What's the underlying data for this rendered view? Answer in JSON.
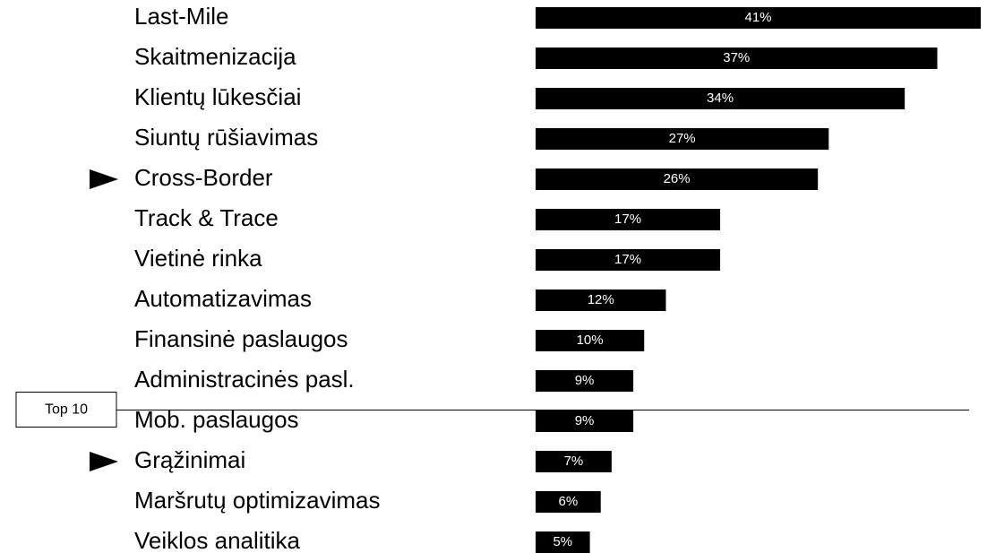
{
  "chart_data": {
    "type": "bar",
    "orientation": "horizontal",
    "categories": [
      "Last-Mile",
      "Skaitmenizacija",
      "Klientų lūkesčiai",
      "Siuntų rūšiavimas",
      "Cross-Border",
      "Track & Trace",
      "Vietinė rinka",
      "Automatizavimas",
      "Finansinė paslaugos",
      "Administracinės pasl.",
      "Mob. paslaugos",
      "Grąžinimai",
      "Maršrutų optimizavimas",
      "Veiklos analitika"
    ],
    "values": [
      41,
      37,
      34,
      27,
      26,
      17,
      17,
      12,
      10,
      9,
      9,
      7,
      6,
      5
    ],
    "value_labels": [
      "41%",
      "37%",
      "34%",
      "27%",
      "26%",
      "17%",
      "17%",
      "12%",
      "10%",
      "9%",
      "9%",
      "7%",
      "6%",
      "5%"
    ],
    "color": "#000000",
    "highlighted": [
      false,
      false,
      false,
      false,
      true,
      false,
      false,
      false,
      false,
      false,
      false,
      true,
      false,
      false
    ],
    "separator": {
      "label": "Top 10",
      "after": 10
    }
  }
}
